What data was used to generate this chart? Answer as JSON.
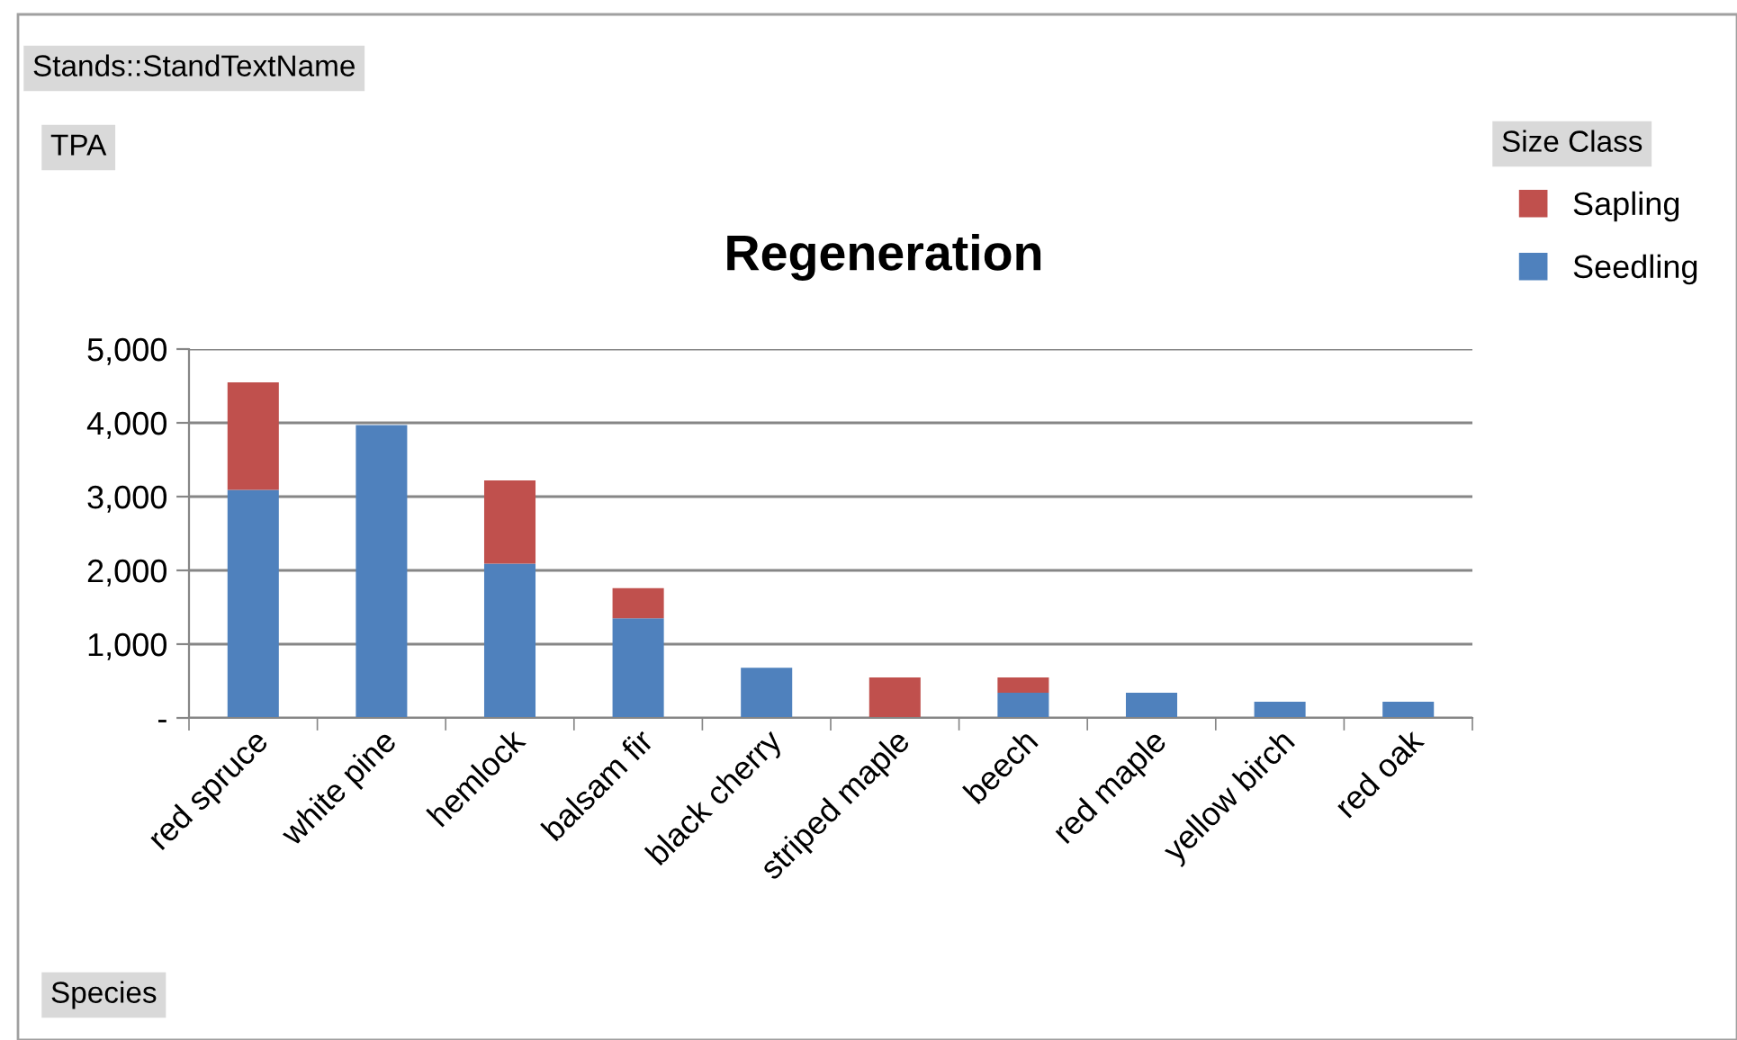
{
  "chart_data": {
    "type": "bar",
    "title": "Regeneration",
    "xlabel": "Species",
    "legend_title": "Size Class",
    "annotations": [
      "Stands::StandTextName",
      "TPA"
    ],
    "categories": [
      "red spruce",
      "white pine",
      "hemlock",
      "balsam fir",
      "black cherry",
      "striped maple",
      "beech",
      "red maple",
      "yellow birch",
      "red oak"
    ],
    "stacked": true,
    "series": [
      {
        "name": "Seedling",
        "color": "#4f81bd",
        "values": [
          3090,
          3970,
          2090,
          1350,
          680,
          0,
          340,
          340,
          220,
          220
        ]
      },
      {
        "name": "Sapling",
        "color": "#c0504d",
        "values": [
          1460,
          null,
          1130,
          410,
          null,
          550,
          210,
          null,
          null,
          null
        ]
      }
    ],
    "ylim": [
      0,
      5000
    ],
    "yticks": [
      {
        "value": 0,
        "label": "-"
      },
      {
        "value": 1000,
        "label": "1,000"
      },
      {
        "value": 2000,
        "label": "2,000"
      },
      {
        "value": 3000,
        "label": "3,000"
      },
      {
        "value": 4000,
        "label": "4,000"
      },
      {
        "value": 5000,
        "label": "5,000"
      }
    ],
    "grid": "y",
    "legend": "top right"
  }
}
